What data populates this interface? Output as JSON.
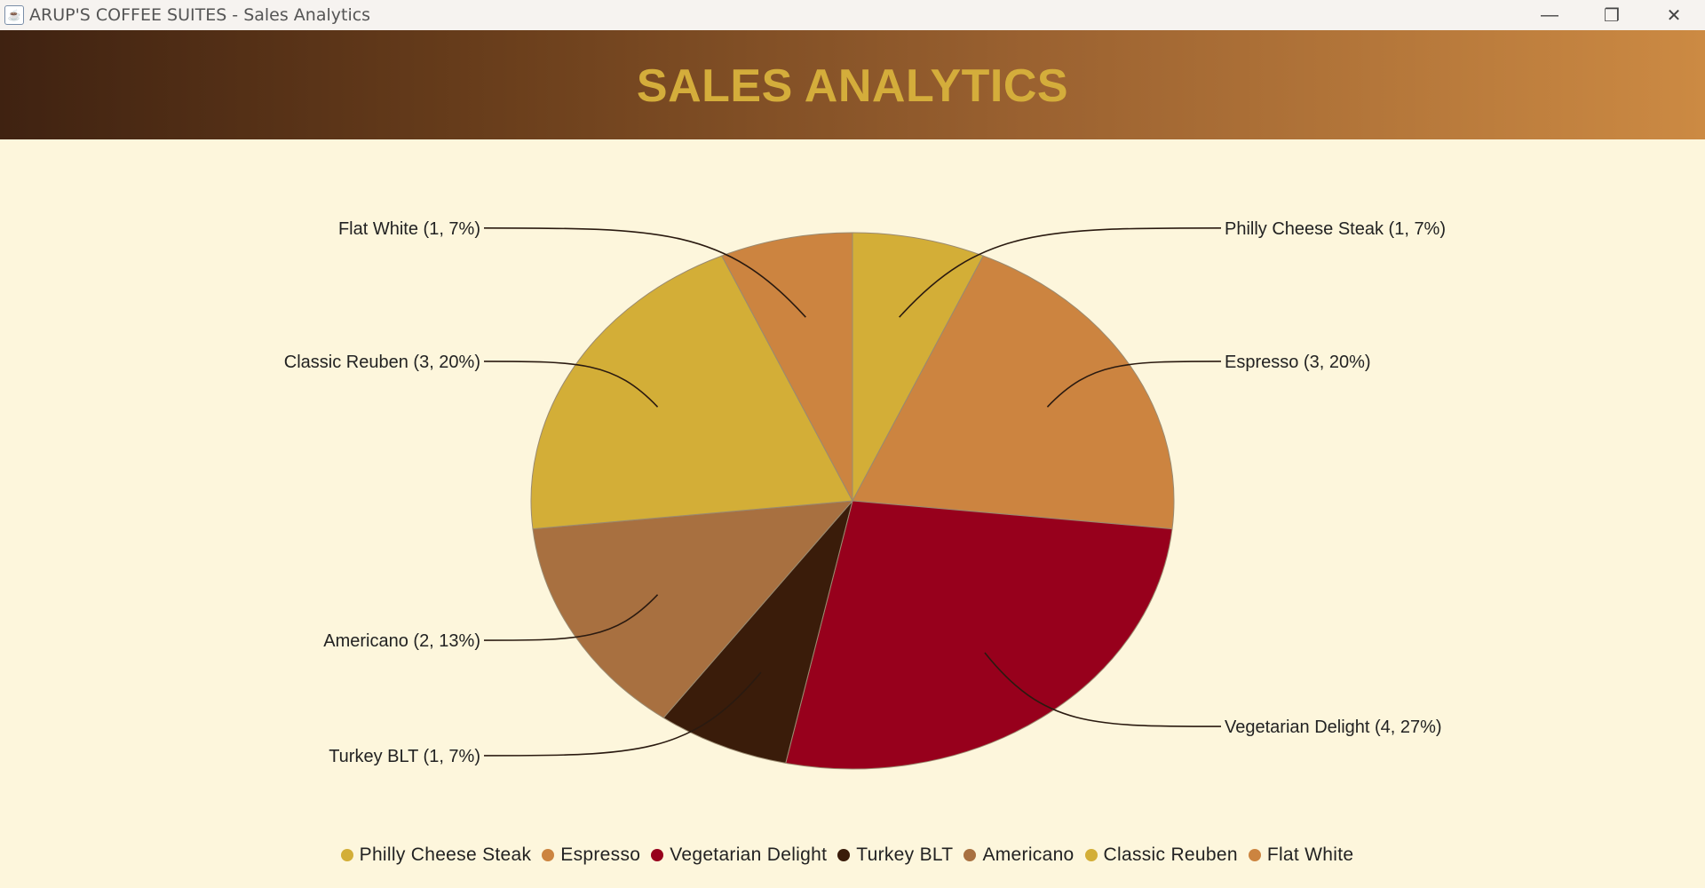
{
  "window": {
    "title": "ARUP'S COFFEE SUITES - Sales Analytics",
    "app_icon": "java-coffee-cup-icon",
    "minimize_symbol": "—",
    "maximize_symbol": "❐",
    "close_symbol": "✕"
  },
  "header": {
    "title": "SALES ANALYTICS",
    "title_color": "#d4ad3b"
  },
  "chart_data": {
    "type": "pie",
    "title": "",
    "slices": [
      {
        "name": "Philly Cheese Steak",
        "value": 1,
        "percent": 7,
        "label": "Philly Cheese Steak (1, 7%)",
        "color": "#d3ae37"
      },
      {
        "name": "Espresso",
        "value": 3,
        "percent": 20,
        "label": "Espresso (3, 20%)",
        "color": "#cc8440"
      },
      {
        "name": "Vegetarian Delight",
        "value": 4,
        "percent": 27,
        "label": "Vegetarian Delight (4, 27%)",
        "color": "#97001c"
      },
      {
        "name": "Turkey BLT",
        "value": 1,
        "percent": 7,
        "label": "Turkey BLT (1, 7%)",
        "color": "#3a1c0a"
      },
      {
        "name": "Americano",
        "value": 2,
        "percent": 13,
        "label": "Americano (2, 13%)",
        "color": "#a87040"
      },
      {
        "name": "Classic Reuben",
        "value": 3,
        "percent": 20,
        "label": "Classic Reuben (3, 20%)",
        "color": "#d3ae37"
      },
      {
        "name": "Flat White",
        "value": 1,
        "percent": 7,
        "label": "Flat White (1, 7%)",
        "color": "#cc8440"
      }
    ],
    "start_angle": "12 o'clock",
    "direction": "clockwise",
    "legend_position": "bottom",
    "background": "#fdf6dc"
  }
}
